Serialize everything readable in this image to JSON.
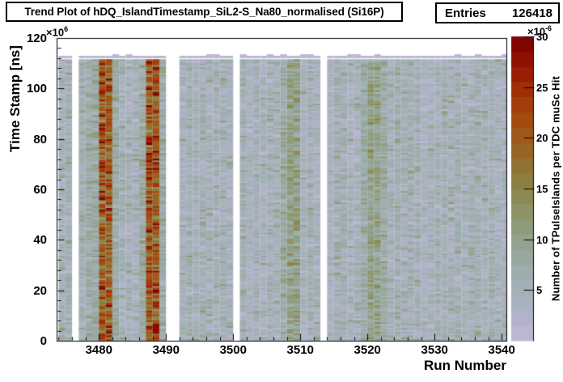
{
  "header": {
    "title": "Trend Plot of hDQ_IslandTimestamp_SiL2-S_Na80_normalised (Si16P)",
    "entries_label": "Entries",
    "entries_value": "126418"
  },
  "axes": {
    "x": {
      "label": "Run Number",
      "ticks": [
        "3480",
        "3490",
        "3500",
        "3510",
        "3520",
        "3530",
        "3540"
      ]
    },
    "y": {
      "label": "Time Stamp [ns]",
      "ticks": [
        "0",
        "20",
        "40",
        "60",
        "80",
        "100",
        "120"
      ],
      "exp_base": "×10",
      "exp": "6"
    },
    "z": {
      "label": "Number of TPulseIslands per TDC muSc Hit",
      "ticks": [
        "5",
        "10",
        "15",
        "20",
        "25",
        "30"
      ],
      "exp_base": "×10",
      "exp": "-6"
    }
  },
  "chart_data": {
    "type": "heatmap",
    "title": "Trend Plot of hDQ_IslandTimestamp_SiL2-S_Na80_normalised (Si16P)",
    "entries": 126418,
    "xlabel": "Run Number",
    "ylabel": "Time Stamp [ns]",
    "zlabel": "Number of TPulseIslands per TDC muSc Hit",
    "x_axis_range": [
      3473.7,
      3540.7
    ],
    "x_tick_values": [
      3480,
      3490,
      3500,
      3510,
      3520,
      3530,
      3540
    ],
    "x_minor_step": 2,
    "y_axis_range_e6": [
      0,
      120
    ],
    "y_tick_values_e6": [
      0,
      20,
      40,
      60,
      80,
      100,
      120
    ],
    "y_minor_step_e6": 4,
    "y_data_max_e6": 112,
    "z_axis_range_e6": [
      0,
      30
    ],
    "z_tick_values_e6": [
      5,
      10,
      15,
      20,
      25,
      30
    ],
    "z_contours": 20,
    "run_blocks": [
      [
        3474,
        3475
      ],
      [
        3477,
        3489
      ],
      [
        3492,
        3499
      ],
      [
        3501,
        3512
      ],
      [
        3514,
        3540
      ]
    ],
    "missing_runs": [
      3476,
      3490,
      3491,
      3500,
      3513
    ],
    "hot_runs": [
      3480,
      3481,
      3487,
      3488
    ],
    "warm_runs": [
      3508,
      3509,
      3520,
      3521
    ],
    "mild_runs": [
      3478,
      3479,
      3482,
      3486,
      3489,
      3507,
      3519,
      3522
    ],
    "cool_runs": [
      3502,
      3514,
      3528
    ],
    "typical_value_e6": 5,
    "warm_value_e6": 10,
    "hot_value_e6": 20,
    "top_cap_value_e6": 1,
    "grid": false,
    "palette_stops": [
      [
        0,
        "#c0bad8"
      ],
      [
        2,
        "#b3b3cb"
      ],
      [
        4,
        "#a9b1bd"
      ],
      [
        6,
        "#9fafb1"
      ],
      [
        8,
        "#97a9a2"
      ],
      [
        10,
        "#90a18b"
      ],
      [
        12,
        "#8d9770"
      ],
      [
        14,
        "#8c8b56"
      ],
      [
        16,
        "#8d7c3f"
      ],
      [
        18,
        "#956c2b"
      ],
      [
        20,
        "#9e5a19"
      ],
      [
        22,
        "#a3490f"
      ],
      [
        24,
        "#a13708"
      ],
      [
        26,
        "#9a2105"
      ],
      [
        28,
        "#8c0e02"
      ],
      [
        30,
        "#7b0000"
      ]
    ]
  }
}
